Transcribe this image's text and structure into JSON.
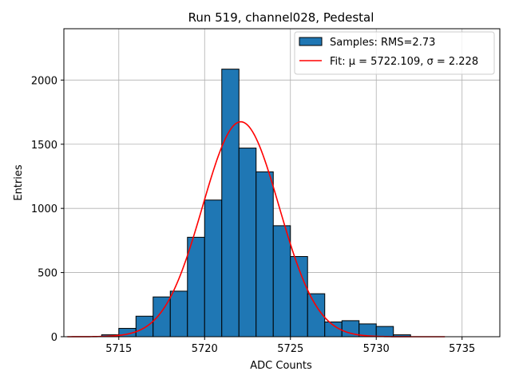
{
  "chart_data": {
    "type": "bar",
    "title": "Run 519, channel028, Pedestal",
    "xlabel": "ADC Counts",
    "ylabel": "Entries",
    "xlim": [
      5711.8,
      5737.2
    ],
    "ylim": [
      0,
      2400
    ],
    "xticks": [
      5715,
      5720,
      5725,
      5730,
      5735
    ],
    "yticks": [
      0,
      500,
      1000,
      1500,
      2000
    ],
    "grid": true,
    "legend_position": "top-right",
    "bin_width": 1,
    "histogram": {
      "name": "Samples: RMS=2.73",
      "color": "#1f77b4",
      "edge_color": "#000000",
      "bins": [
        {
          "x": 5714,
          "value": 15
        },
        {
          "x": 5715,
          "value": 65
        },
        {
          "x": 5716,
          "value": 160
        },
        {
          "x": 5717,
          "value": 310
        },
        {
          "x": 5718,
          "value": 355
        },
        {
          "x": 5719,
          "value": 775
        },
        {
          "x": 5720,
          "value": 1065
        },
        {
          "x": 5721,
          "value": 2085
        },
        {
          "x": 5722,
          "value": 1470
        },
        {
          "x": 5723,
          "value": 1285
        },
        {
          "x": 5724,
          "value": 865
        },
        {
          "x": 5725,
          "value": 625
        },
        {
          "x": 5726,
          "value": 335
        },
        {
          "x": 5727,
          "value": 115
        },
        {
          "x": 5728,
          "value": 125
        },
        {
          "x": 5729,
          "value": 100
        },
        {
          "x": 5730,
          "value": 80
        },
        {
          "x": 5731,
          "value": 15
        }
      ]
    },
    "fit": {
      "name": "Fit: μ = 5722.109, σ = 2.228",
      "color": "#ff0000",
      "mu": 5722.109,
      "sigma": 2.228,
      "amplitude": 1675,
      "x_range": [
        5712,
        5734
      ]
    }
  }
}
